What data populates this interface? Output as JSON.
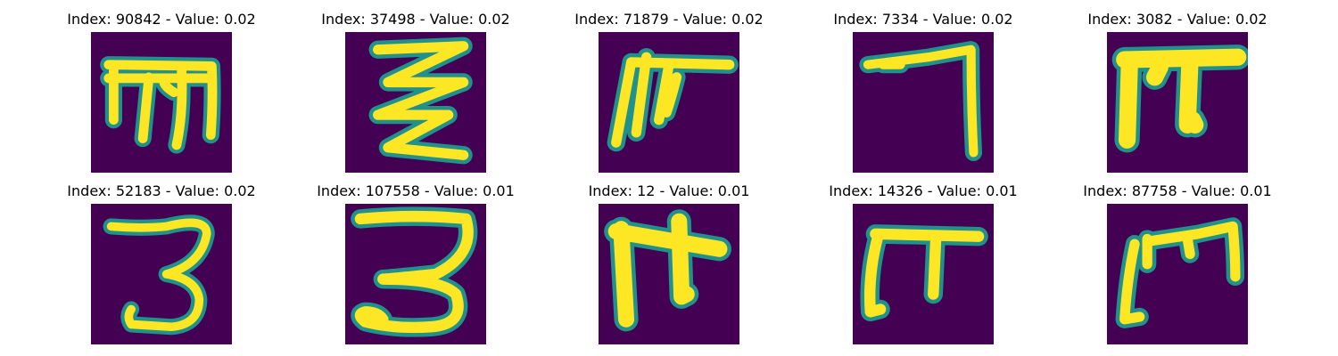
{
  "colors": {
    "background": "#440154",
    "stroke_mid": "#21918c",
    "stroke_edge": "#35b779",
    "stroke_core": "#fde725"
  },
  "panels": [
    {
      "title": "Index: 90842 - Value: 0.02",
      "glyph": "ornate-m-shape"
    },
    {
      "title": "Index: 37498 - Value: 0.02",
      "glyph": "zigzag-shape"
    },
    {
      "title": "Index: 71879 - Value: 0.02",
      "glyph": "rake-shape"
    },
    {
      "title": "Index: 7334 - Value: 0.02",
      "glyph": "seven-shape"
    },
    {
      "title": "Index: 3082 - Value: 0.02",
      "glyph": "pi-shape"
    },
    {
      "title": "Index: 52183 - Value: 0.02",
      "glyph": "three-shape"
    },
    {
      "title": "Index: 107558 - Value: 0.01",
      "glyph": "three-loop-shape"
    },
    {
      "title": "Index: 12 - Value: 0.01",
      "glyph": "f-hook-shape"
    },
    {
      "title": "Index: 14326 - Value: 0.01",
      "glyph": "pi-curved-shape"
    },
    {
      "title": "Index: 87758 - Value: 0.01",
      "glyph": "m-bracket-shape"
    }
  ]
}
